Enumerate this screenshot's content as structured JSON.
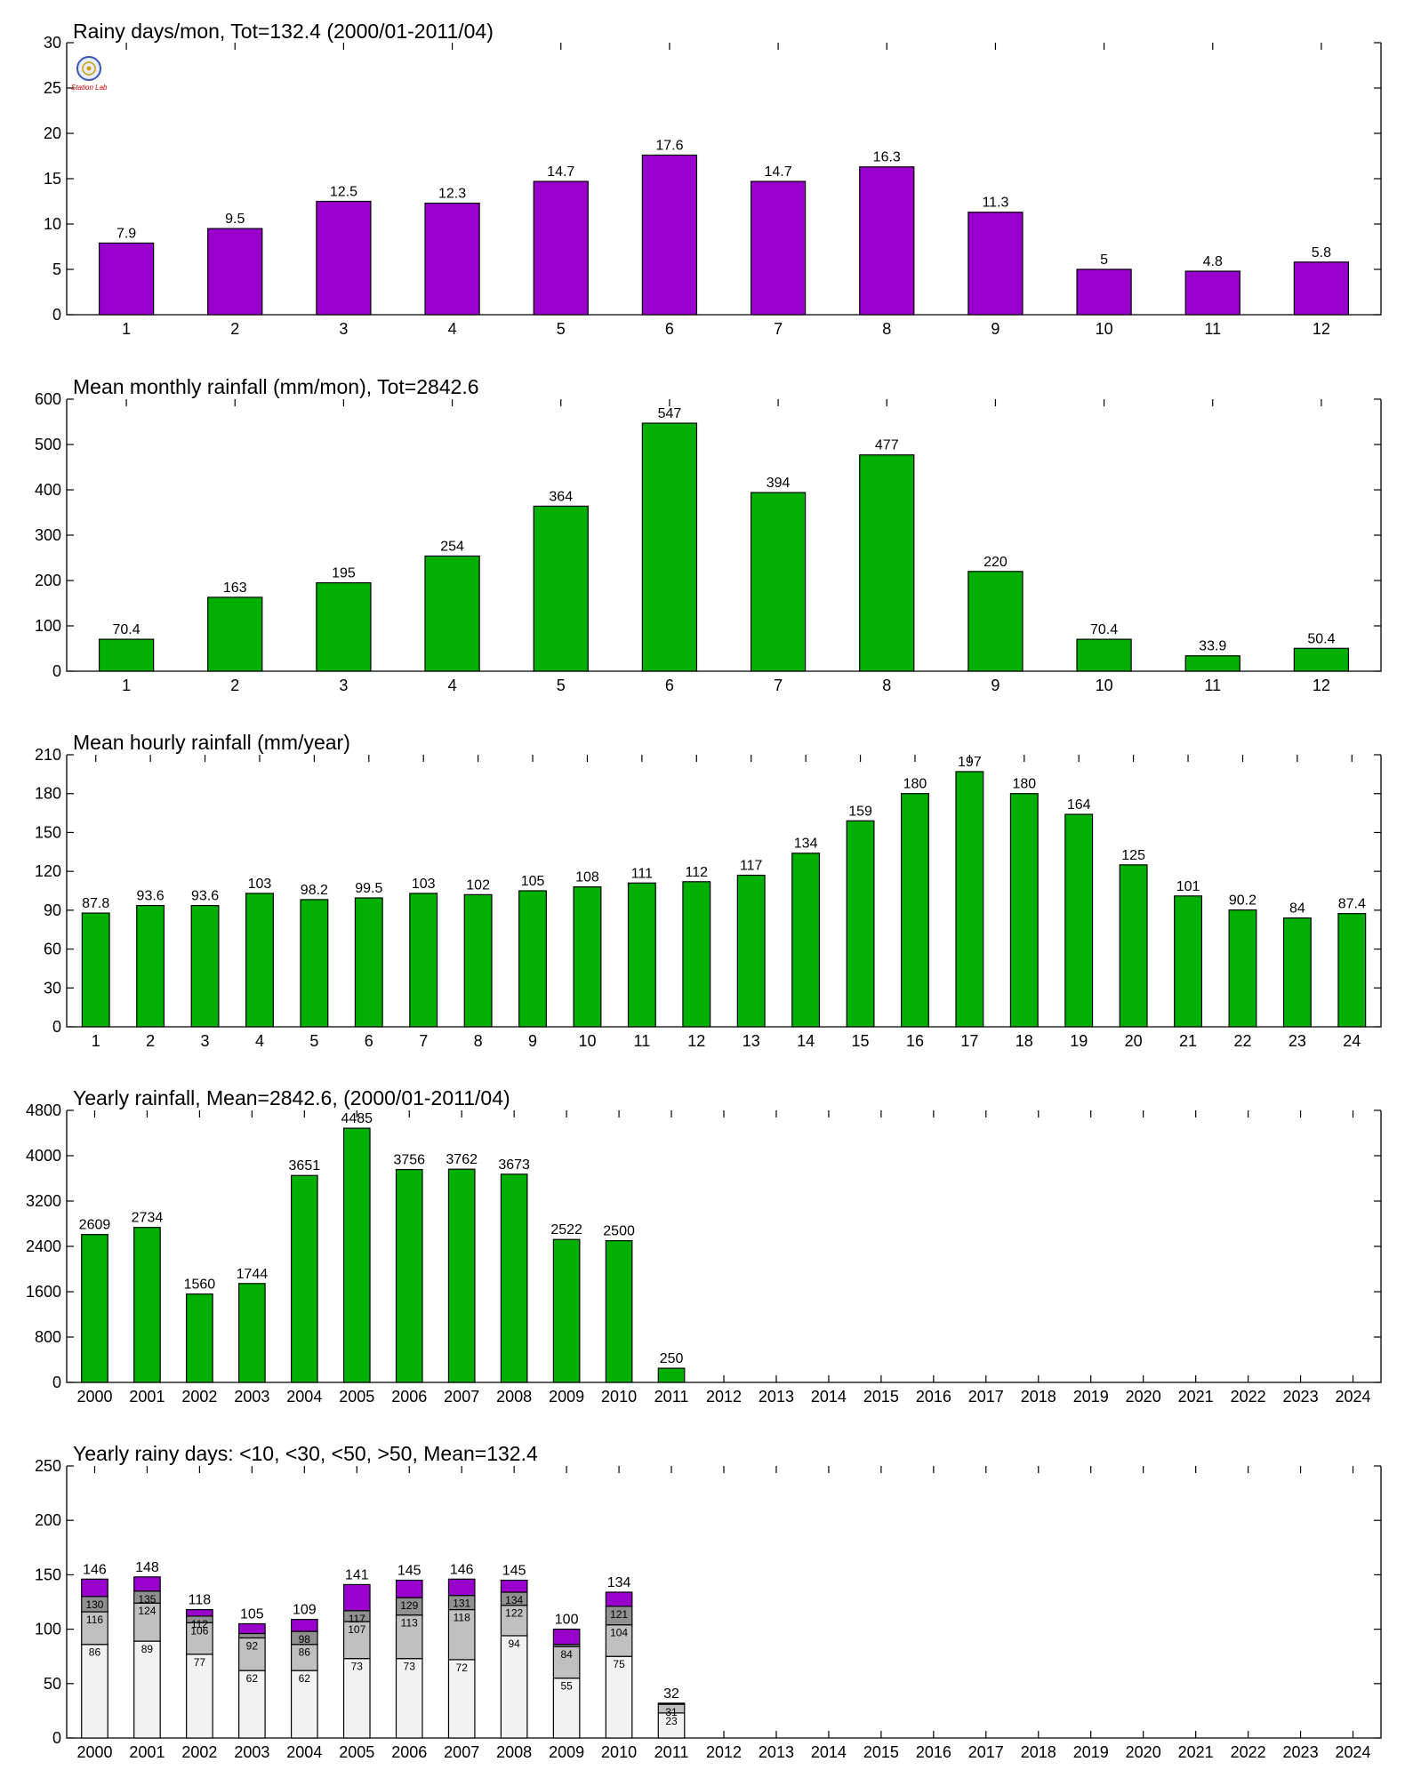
{
  "colors": {
    "purple": "#9900cc",
    "green": "#00b000",
    "seg_lt10": "#f2f2f2",
    "seg_lt30": "#c0c0c0",
    "seg_lt50": "#909090",
    "seg_gt50": "#9900cc"
  },
  "logo": {
    "icon": "station-logo-icon",
    "text": "Station Lab"
  },
  "chart_data": [
    {
      "type": "bar",
      "title": "Rainy days/mon, Tot=132.4 (2000/01-2011/04)",
      "categories": [
        "1",
        "2",
        "3",
        "4",
        "5",
        "6",
        "7",
        "8",
        "9",
        "10",
        "11",
        "12"
      ],
      "values": [
        7.9,
        9.5,
        12.5,
        12.3,
        14.7,
        17.6,
        14.7,
        16.3,
        11.3,
        5,
        4.8,
        5.8
      ],
      "labels": [
        "7.9",
        "9.5",
        "12.5",
        "12.3",
        "14.7",
        "17.6",
        "14.7",
        "16.3",
        "11.3",
        "5",
        "4.8",
        "5.8"
      ],
      "ylim": [
        0,
        30
      ],
      "yticks": [
        "0",
        "5",
        "10",
        "15",
        "20",
        "25",
        "30"
      ],
      "color": "#9900cc"
    },
    {
      "type": "bar",
      "title": "Mean monthly rainfall (mm/mon), Tot=2842.6",
      "categories": [
        "1",
        "2",
        "3",
        "4",
        "5",
        "6",
        "7",
        "8",
        "9",
        "10",
        "11",
        "12"
      ],
      "values": [
        70.4,
        163,
        195,
        254,
        364,
        547,
        394,
        477,
        220,
        70.4,
        33.9,
        50.4
      ],
      "labels": [
        "70.4",
        "163",
        "195",
        "254",
        "364",
        "547",
        "394",
        "477",
        "220",
        "70.4",
        "33.9",
        "50.4"
      ],
      "ylim": [
        0,
        600
      ],
      "yticks": [
        "0",
        "100",
        "200",
        "300",
        "400",
        "500",
        "600"
      ],
      "color": "#00b000"
    },
    {
      "type": "bar",
      "title": "Mean hourly rainfall (mm/year)",
      "categories": [
        "1",
        "2",
        "3",
        "4",
        "5",
        "6",
        "7",
        "8",
        "9",
        "10",
        "11",
        "12",
        "13",
        "14",
        "15",
        "16",
        "17",
        "18",
        "19",
        "20",
        "21",
        "22",
        "23",
        "24"
      ],
      "values": [
        87.8,
        93.6,
        93.6,
        103,
        98.2,
        99.5,
        103,
        102,
        105,
        108,
        111,
        112,
        117,
        134,
        159,
        180,
        197,
        180,
        164,
        125,
        101,
        90.2,
        84,
        87.4
      ],
      "labels": [
        "87.8",
        "93.6",
        "93.6",
        "103",
        "98.2",
        "99.5",
        "103",
        "102",
        "105",
        "108",
        "111",
        "112",
        "117",
        "134",
        "159",
        "180",
        "197",
        "180",
        "164",
        "125",
        "101",
        "90.2",
        "84",
        "87.4"
      ],
      "ylim": [
        0,
        210
      ],
      "yticks": [
        "0",
        "30",
        "60",
        "90",
        "120",
        "150",
        "180",
        "210"
      ],
      "color": "#00b000"
    },
    {
      "type": "bar",
      "title": "Yearly rainfall, Mean=2842.6, (2000/01-2011/04)",
      "categories": [
        "2000",
        "2001",
        "2002",
        "2003",
        "2004",
        "2005",
        "2006",
        "2007",
        "2008",
        "2009",
        "2010",
        "2011",
        "2012",
        "2013",
        "2014",
        "2015",
        "2016",
        "2017",
        "2018",
        "2019",
        "2020",
        "2021",
        "2022",
        "2023",
        "2024"
      ],
      "values": [
        2609,
        2734,
        1560,
        1744,
        3651,
        4485,
        3756,
        3762,
        3673,
        2522,
        2500,
        250
      ],
      "labels": [
        "2609",
        "2734",
        "1560",
        "1744",
        "3651",
        "4485",
        "3756",
        "3762",
        "3673",
        "2522",
        "2500",
        "250"
      ],
      "ylim": [
        0,
        4800
      ],
      "yticks": [
        "0",
        "800",
        "1600",
        "2400",
        "3200",
        "4000",
        "4800"
      ],
      "color": "#00b000"
    },
    {
      "type": "bar",
      "stacked": true,
      "title": "Yearly rainy days: <10, <30, <50, >50, Mean=132.4",
      "categories": [
        "2000",
        "2001",
        "2002",
        "2003",
        "2004",
        "2005",
        "2006",
        "2007",
        "2008",
        "2009",
        "2010",
        "2011",
        "2012",
        "2013",
        "2014",
        "2015",
        "2016",
        "2017",
        "2018",
        "2019",
        "2020",
        "2021",
        "2022",
        "2023",
        "2024"
      ],
      "cumulative": [
        [
          86,
          116,
          130,
          146
        ],
        [
          89,
          124,
          135,
          148
        ],
        [
          77,
          106,
          112,
          118
        ],
        [
          62,
          92,
          96,
          105
        ],
        [
          62,
          86,
          98,
          109
        ],
        [
          73,
          107,
          117,
          141
        ],
        [
          73,
          113,
          129,
          145
        ],
        [
          72,
          118,
          131,
          146
        ],
        [
          94,
          122,
          134,
          145
        ],
        [
          55,
          84,
          86,
          100
        ],
        [
          75,
          104,
          121,
          134
        ],
        [
          23,
          31,
          32,
          32
        ]
      ],
      "segment_labels": [
        [
          "86",
          "116",
          "130"
        ],
        [
          "89",
          "124",
          "135"
        ],
        [
          "77",
          "106",
          "112"
        ],
        [
          "62",
          "92",
          ""
        ],
        [
          "62",
          "86",
          "98"
        ],
        [
          "73",
          "107",
          "117"
        ],
        [
          "73",
          "113",
          "129"
        ],
        [
          "72",
          "118",
          "131"
        ],
        [
          "94",
          "122",
          "134"
        ],
        [
          "55",
          "84",
          ""
        ],
        [
          "75",
          "104",
          "121"
        ],
        [
          "23",
          "31",
          ""
        ]
      ],
      "totals": [
        "146",
        "148",
        "118",
        "105",
        "109",
        "141",
        "145",
        "146",
        "145",
        "100",
        "134",
        "32"
      ],
      "ylim": [
        0,
        250
      ],
      "yticks": [
        "0",
        "50",
        "100",
        "150",
        "200",
        "250"
      ],
      "colors": [
        "#f2f2f2",
        "#c0c0c0",
        "#909090",
        "#9900cc"
      ]
    }
  ]
}
